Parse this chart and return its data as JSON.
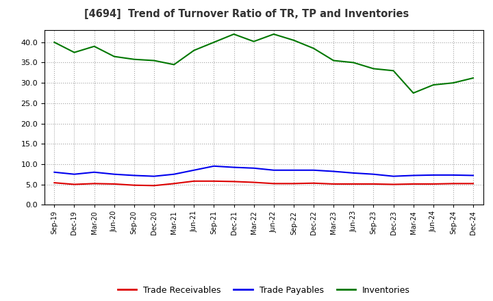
{
  "title": "[4694]  Trend of Turnover Ratio of TR, TP and Inventories",
  "x_labels": [
    "Sep-19",
    "Dec-19",
    "Mar-20",
    "Jun-20",
    "Sep-20",
    "Dec-20",
    "Mar-21",
    "Jun-21",
    "Sep-21",
    "Dec-21",
    "Mar-22",
    "Jun-22",
    "Sep-22",
    "Dec-22",
    "Mar-23",
    "Jun-23",
    "Sep-23",
    "Dec-23",
    "Mar-24",
    "Jun-24",
    "Sep-24",
    "Dec-24"
  ],
  "trade_receivables": [
    5.4,
    5.0,
    5.2,
    5.1,
    4.8,
    4.7,
    5.2,
    5.8,
    5.8,
    5.7,
    5.5,
    5.2,
    5.2,
    5.3,
    5.1,
    5.1,
    5.1,
    5.0,
    5.1,
    5.1,
    5.2,
    5.2
  ],
  "trade_payables": [
    8.0,
    7.5,
    8.0,
    7.5,
    7.2,
    7.0,
    7.5,
    8.5,
    9.5,
    9.2,
    9.0,
    8.5,
    8.5,
    8.5,
    8.2,
    7.8,
    7.5,
    7.0,
    7.2,
    7.3,
    7.3,
    7.2
  ],
  "inventories": [
    40.0,
    37.5,
    39.0,
    36.5,
    35.8,
    35.5,
    34.5,
    38.0,
    40.0,
    42.0,
    40.2,
    42.0,
    40.5,
    38.5,
    35.5,
    35.0,
    33.5,
    33.0,
    27.5,
    29.5,
    30.0,
    31.2
  ],
  "line_color_tr": "#dd0000",
  "line_color_tp": "#0000ee",
  "line_color_inv": "#007700",
  "ylim": [
    0.0,
    43.0
  ],
  "yticks": [
    0.0,
    5.0,
    10.0,
    15.0,
    20.0,
    25.0,
    30.0,
    35.0,
    40.0
  ],
  "legend_labels": [
    "Trade Receivables",
    "Trade Payables",
    "Inventories"
  ],
  "background_color": "#ffffff",
  "grid_color": "#999999"
}
